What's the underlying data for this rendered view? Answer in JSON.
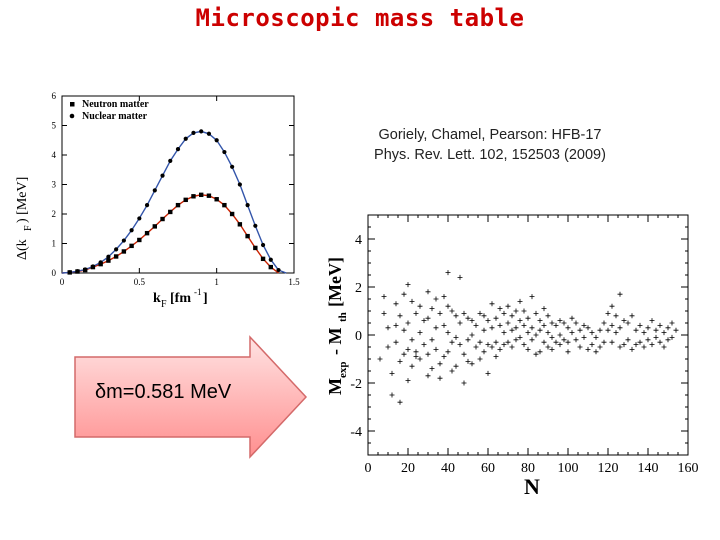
{
  "slide": {
    "title": "Microscopic mass table",
    "reference_line1": "Goriely, Chamel, Pearson: HFB-17",
    "reference_line2": "Phys. Rev. Lett. 102, 152503 (2009)",
    "arrow_text": "δm=0.581 MeV"
  },
  "chart_data": [
    {
      "type": "line",
      "xlabel": "k_F [fm^-1]",
      "ylabel": "Δ(k_F) [MeV]",
      "xlim": [
        0,
        1.5
      ],
      "ylim": [
        0,
        6
      ],
      "x_ticks": [
        "0",
        "0.5",
        "1",
        "1.5"
      ],
      "y_ticks": [
        "0",
        "1",
        "2",
        "3",
        "4",
        "5",
        "6"
      ],
      "legend_position": "top-left",
      "series": [
        {
          "name": "Neutron matter",
          "marker": "square",
          "points": [
            [
              0.05,
              0.02
            ],
            [
              0.1,
              0.05
            ],
            [
              0.15,
              0.1
            ],
            [
              0.2,
              0.2
            ],
            [
              0.25,
              0.3
            ],
            [
              0.3,
              0.42
            ],
            [
              0.35,
              0.56
            ],
            [
              0.4,
              0.73
            ],
            [
              0.45,
              0.92
            ],
            [
              0.5,
              1.12
            ],
            [
              0.55,
              1.35
            ],
            [
              0.6,
              1.58
            ],
            [
              0.65,
              1.83
            ],
            [
              0.7,
              2.07
            ],
            [
              0.75,
              2.3
            ],
            [
              0.8,
              2.48
            ],
            [
              0.85,
              2.6
            ],
            [
              0.9,
              2.65
            ],
            [
              0.95,
              2.62
            ],
            [
              1.0,
              2.5
            ],
            [
              1.05,
              2.3
            ],
            [
              1.1,
              2.0
            ],
            [
              1.15,
              1.65
            ],
            [
              1.2,
              1.25
            ],
            [
              1.25,
              0.85
            ],
            [
              1.3,
              0.48
            ],
            [
              1.35,
              0.2
            ]
          ]
        },
        {
          "name": "Nuclear matter",
          "marker": "circle",
          "points": [
            [
              0.05,
              0.02
            ],
            [
              0.1,
              0.06
            ],
            [
              0.15,
              0.12
            ],
            [
              0.2,
              0.22
            ],
            [
              0.25,
              0.36
            ],
            [
              0.3,
              0.55
            ],
            [
              0.35,
              0.8
            ],
            [
              0.4,
              1.1
            ],
            [
              0.45,
              1.45
            ],
            [
              0.5,
              1.85
            ],
            [
              0.55,
              2.3
            ],
            [
              0.6,
              2.8
            ],
            [
              0.65,
              3.3
            ],
            [
              0.7,
              3.8
            ],
            [
              0.75,
              4.2
            ],
            [
              0.8,
              4.55
            ],
            [
              0.85,
              4.75
            ],
            [
              0.9,
              4.8
            ],
            [
              0.95,
              4.72
            ],
            [
              1.0,
              4.5
            ],
            [
              1.05,
              4.1
            ],
            [
              1.1,
              3.6
            ],
            [
              1.15,
              3.0
            ],
            [
              1.2,
              2.3
            ],
            [
              1.25,
              1.6
            ],
            [
              1.3,
              0.95
            ],
            [
              1.35,
              0.45
            ],
            [
              1.4,
              0.1
            ]
          ]
        }
      ]
    },
    {
      "type": "scatter",
      "xlabel": "N",
      "ylabel": "M_exp - M_th [MeV]",
      "xlim": [
        0,
        160
      ],
      "ylim": [
        -5,
        5
      ],
      "x_ticks": [
        "0",
        "20",
        "40",
        "60",
        "80",
        "100",
        "120",
        "140",
        "160"
      ],
      "y_ticks": [
        "4",
        "2",
        "0",
        "-2",
        "-4"
      ],
      "marker": "plus",
      "rms_deviation": 0.581,
      "points": [
        [
          6,
          -1.0
        ],
        [
          8,
          0.9
        ],
        [
          8,
          1.6
        ],
        [
          10,
          0.3
        ],
        [
          10,
          -0.5
        ],
        [
          12,
          -1.6
        ],
        [
          12,
          -2.5
        ],
        [
          14,
          1.3
        ],
        [
          14,
          0.4
        ],
        [
          14,
          -0.3
        ],
        [
          16,
          0.8
        ],
        [
          16,
          -1.1
        ],
        [
          16,
          -2.8
        ],
        [
          18,
          1.7
        ],
        [
          18,
          0.2
        ],
        [
          18,
          -0.8
        ],
        [
          20,
          2.1
        ],
        [
          20,
          0.5
        ],
        [
          20,
          -0.6
        ],
        [
          20,
          -1.9
        ],
        [
          22,
          1.4
        ],
        [
          22,
          -0.2
        ],
        [
          22,
          -1.3
        ],
        [
          24,
          0.9
        ],
        [
          24,
          -0.7
        ],
        [
          24,
          -0.9
        ],
        [
          26,
          1.2
        ],
        [
          26,
          0.1
        ],
        [
          26,
          -1.0
        ],
        [
          28,
          0.6
        ],
        [
          28,
          -0.4
        ],
        [
          30,
          1.8
        ],
        [
          30,
          0.7
        ],
        [
          30,
          -0.8
        ],
        [
          30,
          -1.7
        ],
        [
          32,
          1.1
        ],
        [
          32,
          -0.2
        ],
        [
          32,
          -1.4
        ],
        [
          34,
          1.5
        ],
        [
          34,
          0.3
        ],
        [
          34,
          -0.6
        ],
        [
          36,
          0.9
        ],
        [
          36,
          -1.2
        ],
        [
          36,
          -1.8
        ],
        [
          38,
          1.6
        ],
        [
          38,
          0.4
        ],
        [
          38,
          -0.9
        ],
        [
          40,
          2.6
        ],
        [
          40,
          1.2
        ],
        [
          40,
          0.1
        ],
        [
          40,
          -0.7
        ],
        [
          42,
          1.0
        ],
        [
          42,
          -0.3
        ],
        [
          42,
          -1.5
        ],
        [
          44,
          0.8
        ],
        [
          44,
          -0.1
        ],
        [
          44,
          -1.3
        ],
        [
          46,
          2.4
        ],
        [
          46,
          0.5
        ],
        [
          46,
          -0.4
        ],
        [
          48,
          0.9
        ],
        [
          48,
          -0.8
        ],
        [
          48,
          -2.0
        ],
        [
          50,
          0.7
        ],
        [
          50,
          -0.2
        ],
        [
          50,
          -1.1
        ],
        [
          52,
          0.6
        ],
        [
          52,
          0.0
        ],
        [
          52,
          -1.2
        ],
        [
          54,
          0.4
        ],
        [
          54,
          -0.5
        ],
        [
          56,
          0.9
        ],
        [
          56,
          -0.3
        ],
        [
          56,
          -1.0
        ],
        [
          58,
          0.8
        ],
        [
          58,
          0.2
        ],
        [
          58,
          -0.7
        ],
        [
          60,
          0.6
        ],
        [
          60,
          -0.4
        ],
        [
          60,
          -1.6
        ],
        [
          62,
          1.3
        ],
        [
          62,
          0.3
        ],
        [
          62,
          -0.5
        ],
        [
          64,
          0.7
        ],
        [
          64,
          -0.3
        ],
        [
          64,
          -0.9
        ],
        [
          66,
          1.1
        ],
        [
          66,
          0.4
        ],
        [
          66,
          -0.6
        ],
        [
          68,
          0.9
        ],
        [
          68,
          0.1
        ],
        [
          68,
          -0.4
        ],
        [
          70,
          1.2
        ],
        [
          70,
          0.5
        ],
        [
          70,
          -0.3
        ],
        [
          72,
          0.8
        ],
        [
          72,
          0.2
        ],
        [
          72,
          -0.5
        ],
        [
          74,
          1.0
        ],
        [
          74,
          0.3
        ],
        [
          74,
          -0.2
        ],
        [
          76,
          1.4
        ],
        [
          76,
          0.6
        ],
        [
          76,
          -0.1
        ],
        [
          78,
          1.0
        ],
        [
          78,
          0.4
        ],
        [
          78,
          -0.4
        ],
        [
          80,
          0.7
        ],
        [
          80,
          0.1
        ],
        [
          80,
          -0.6
        ],
        [
          82,
          1.6
        ],
        [
          82,
          0.3
        ],
        [
          82,
          -0.2
        ],
        [
          84,
          0.9
        ],
        [
          84,
          0.0
        ],
        [
          84,
          -0.8
        ],
        [
          86,
          0.6
        ],
        [
          86,
          0.2
        ],
        [
          86,
          -0.7
        ],
        [
          88,
          1.1
        ],
        [
          88,
          0.4
        ],
        [
          88,
          -0.3
        ],
        [
          90,
          0.8
        ],
        [
          90,
          0.1
        ],
        [
          90,
          -0.5
        ],
        [
          92,
          0.5
        ],
        [
          92,
          -0.1
        ],
        [
          92,
          -0.6
        ],
        [
          94,
          0.4
        ],
        [
          94,
          -0.3
        ],
        [
          96,
          0.6
        ],
        [
          96,
          0.0
        ],
        [
          96,
          -0.4
        ],
        [
          98,
          0.5
        ],
        [
          98,
          -0.2
        ],
        [
          100,
          0.3
        ],
        [
          100,
          -0.3
        ],
        [
          100,
          -0.7
        ],
        [
          102,
          0.7
        ],
        [
          102,
          0.1
        ],
        [
          104,
          0.5
        ],
        [
          104,
          -0.2
        ],
        [
          106,
          0.2
        ],
        [
          106,
          -0.5
        ],
        [
          108,
          0.4
        ],
        [
          108,
          -0.1
        ],
        [
          110,
          0.3
        ],
        [
          110,
          -0.6
        ],
        [
          112,
          0.1
        ],
        [
          112,
          -0.4
        ],
        [
          114,
          -0.1
        ],
        [
          114,
          -0.7
        ],
        [
          116,
          0.2
        ],
        [
          116,
          -0.5
        ],
        [
          118,
          0.5
        ],
        [
          118,
          -0.3
        ],
        [
          120,
          0.9
        ],
        [
          120,
          0.2
        ],
        [
          122,
          1.2
        ],
        [
          122,
          0.4
        ],
        [
          122,
          -0.3
        ],
        [
          124,
          0.8
        ],
        [
          124,
          0.1
        ],
        [
          126,
          1.7
        ],
        [
          126,
          0.3
        ],
        [
          126,
          -0.5
        ],
        [
          128,
          0.6
        ],
        [
          128,
          -0.4
        ],
        [
          130,
          0.5
        ],
        [
          130,
          -0.2
        ],
        [
          132,
          0.8
        ],
        [
          132,
          -0.6
        ],
        [
          134,
          0.2
        ],
        [
          134,
          -0.4
        ],
        [
          136,
          0.4
        ],
        [
          136,
          -0.3
        ],
        [
          138,
          0.1
        ],
        [
          138,
          -0.5
        ],
        [
          140,
          0.3
        ],
        [
          140,
          -0.2
        ],
        [
          142,
          0.6
        ],
        [
          142,
          -0.4
        ],
        [
          144,
          0.2
        ],
        [
          144,
          -0.1
        ],
        [
          146,
          0.4
        ],
        [
          146,
          -0.3
        ],
        [
          148,
          0.1
        ],
        [
          148,
          -0.5
        ],
        [
          150,
          0.3
        ],
        [
          150,
          -0.2
        ],
        [
          152,
          0.5
        ],
        [
          152,
          -0.1
        ],
        [
          154,
          0.2
        ]
      ]
    }
  ]
}
